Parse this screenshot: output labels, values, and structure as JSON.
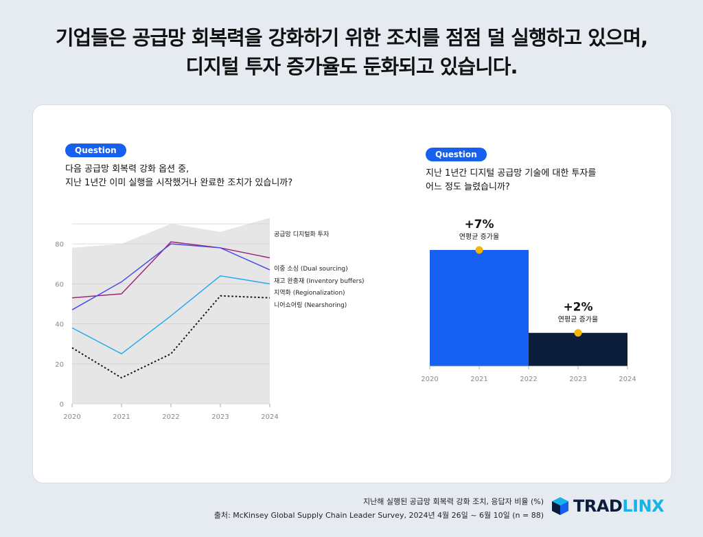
{
  "headline": {
    "line1": "기업들은 공급망 회복력을 강화하기 위한 조치를 점점 덜 실행하고 있으며,",
    "line2": "디지털 투자 증가율도 둔화되고 있습니다."
  },
  "left_panel": {
    "badge": "Question",
    "question_line1": "다음 공급망 회복력 강화 옵션 중,",
    "question_line2": "지난 1년간 이미 실행을 시작했거나 완료한 조치가 있습니까?"
  },
  "right_panel": {
    "badge": "Question",
    "question_line1": "지난 1년간 디지털 공급망 기술에 대한 투자를",
    "question_line2": "어느 정도 늘렸습니까?"
  },
  "footer": {
    "line1": "지난해 실행된 공급망 회복력 강화 조치, 응답자 비율 (%)",
    "line2": "출처: McKinsey Global Supply Chain Leader Survey, 2024년 4월 26일 ~ 6월 10일 (n = 88)"
  },
  "logo": {
    "part1": "TRAD",
    "part2": "LINX",
    "icon": "cube-logo-icon"
  },
  "colors": {
    "area": "#e6e6e6",
    "digital_investment": "#e6e6e6",
    "dual_sourcing": "#a0257a",
    "inventory_buffers": "#4a4ae8",
    "regionalization": "#28aaf0",
    "nearshoring": "#111111",
    "bar_2020_2022": "#1560f0",
    "bar_2022_2024": "#0b1d3b",
    "marker": "#f5b400",
    "badge": "#1560f0"
  },
  "chart_data": [
    {
      "type": "line",
      "x": [
        2020,
        2021,
        2022,
        2023,
        2024
      ],
      "ylim": [
        0,
        90
      ],
      "yticks": [
        0,
        20,
        40,
        60,
        80
      ],
      "grid": true,
      "legend": "right, labels at line ends",
      "area_series": {
        "name": "공급망 디지털화 투자",
        "values": [
          78,
          80,
          90,
          86,
          93
        ]
      },
      "series": [
        {
          "name": "이중 소싱 (Dual sourcing)",
          "key": "dual_sourcing",
          "dashed": false,
          "values": [
            53,
            55,
            81,
            78,
            73
          ]
        },
        {
          "name": "재고 완충재 (Inventory buffers)",
          "key": "inventory_buffers",
          "dashed": false,
          "values": [
            47,
            61,
            80,
            78,
            67
          ]
        },
        {
          "name": "지역화 (Regionalization)",
          "key": "regionalization",
          "dashed": false,
          "values": [
            38,
            25,
            44,
            64,
            60
          ]
        },
        {
          "name": "니어쇼어링 (Nearshoring)",
          "key": "nearshoring",
          "dashed": true,
          "values": [
            28,
            13,
            25,
            54,
            53
          ]
        }
      ]
    },
    {
      "type": "bar",
      "x_ticks": [
        2020,
        2021,
        2022,
        2023,
        2024
      ],
      "bars": [
        {
          "from": 2020,
          "to": 2022,
          "key": "bar_2020_2022",
          "value": 7,
          "label": "+7%",
          "sublabel": "연평균 증가율"
        },
        {
          "from": 2022,
          "to": 2024,
          "key": "bar_2022_2024",
          "value": 2,
          "label": "+2%",
          "sublabel": "연평균 증가율"
        }
      ],
      "markers_at": [
        2021,
        2023
      ]
    }
  ]
}
